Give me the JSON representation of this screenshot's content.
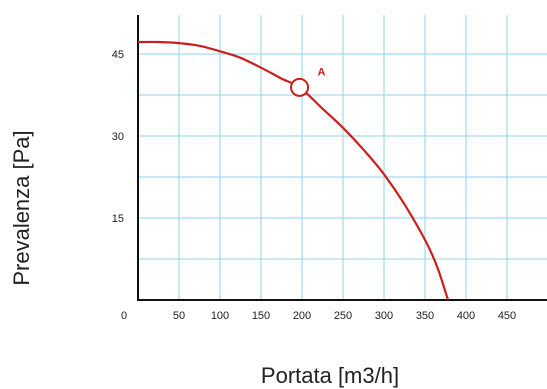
{
  "chart_data": {
    "type": "line",
    "xlabel": "Portata [m3/h]",
    "ylabel": "Prevalenza [Pa]",
    "xlim": [
      0,
      500
    ],
    "ylim": [
      0,
      52
    ],
    "x_ticks": [
      0,
      50,
      100,
      150,
      200,
      250,
      300,
      350,
      400,
      450
    ],
    "y_ticks": [
      15,
      30,
      45
    ],
    "x_grid_step": 50,
    "y_grid_step": 7.5,
    "grid": true,
    "series": [
      {
        "color": "#cc1f1a",
        "x": [
          0,
          25,
          50,
          75,
          100,
          125,
          150,
          175,
          197,
          225,
          250,
          275,
          300,
          325,
          350,
          365,
          378
        ],
        "y": [
          47.2,
          47.2,
          47.0,
          46.5,
          45.5,
          44.3,
          42.5,
          40.5,
          38.9,
          35.0,
          31.5,
          27.5,
          23.0,
          17.5,
          11.0,
          6.0,
          0
        ]
      }
    ],
    "annotations": [
      {
        "label": "A",
        "x": 197,
        "y": 38.9,
        "color": "#cc1f1a"
      }
    ]
  }
}
